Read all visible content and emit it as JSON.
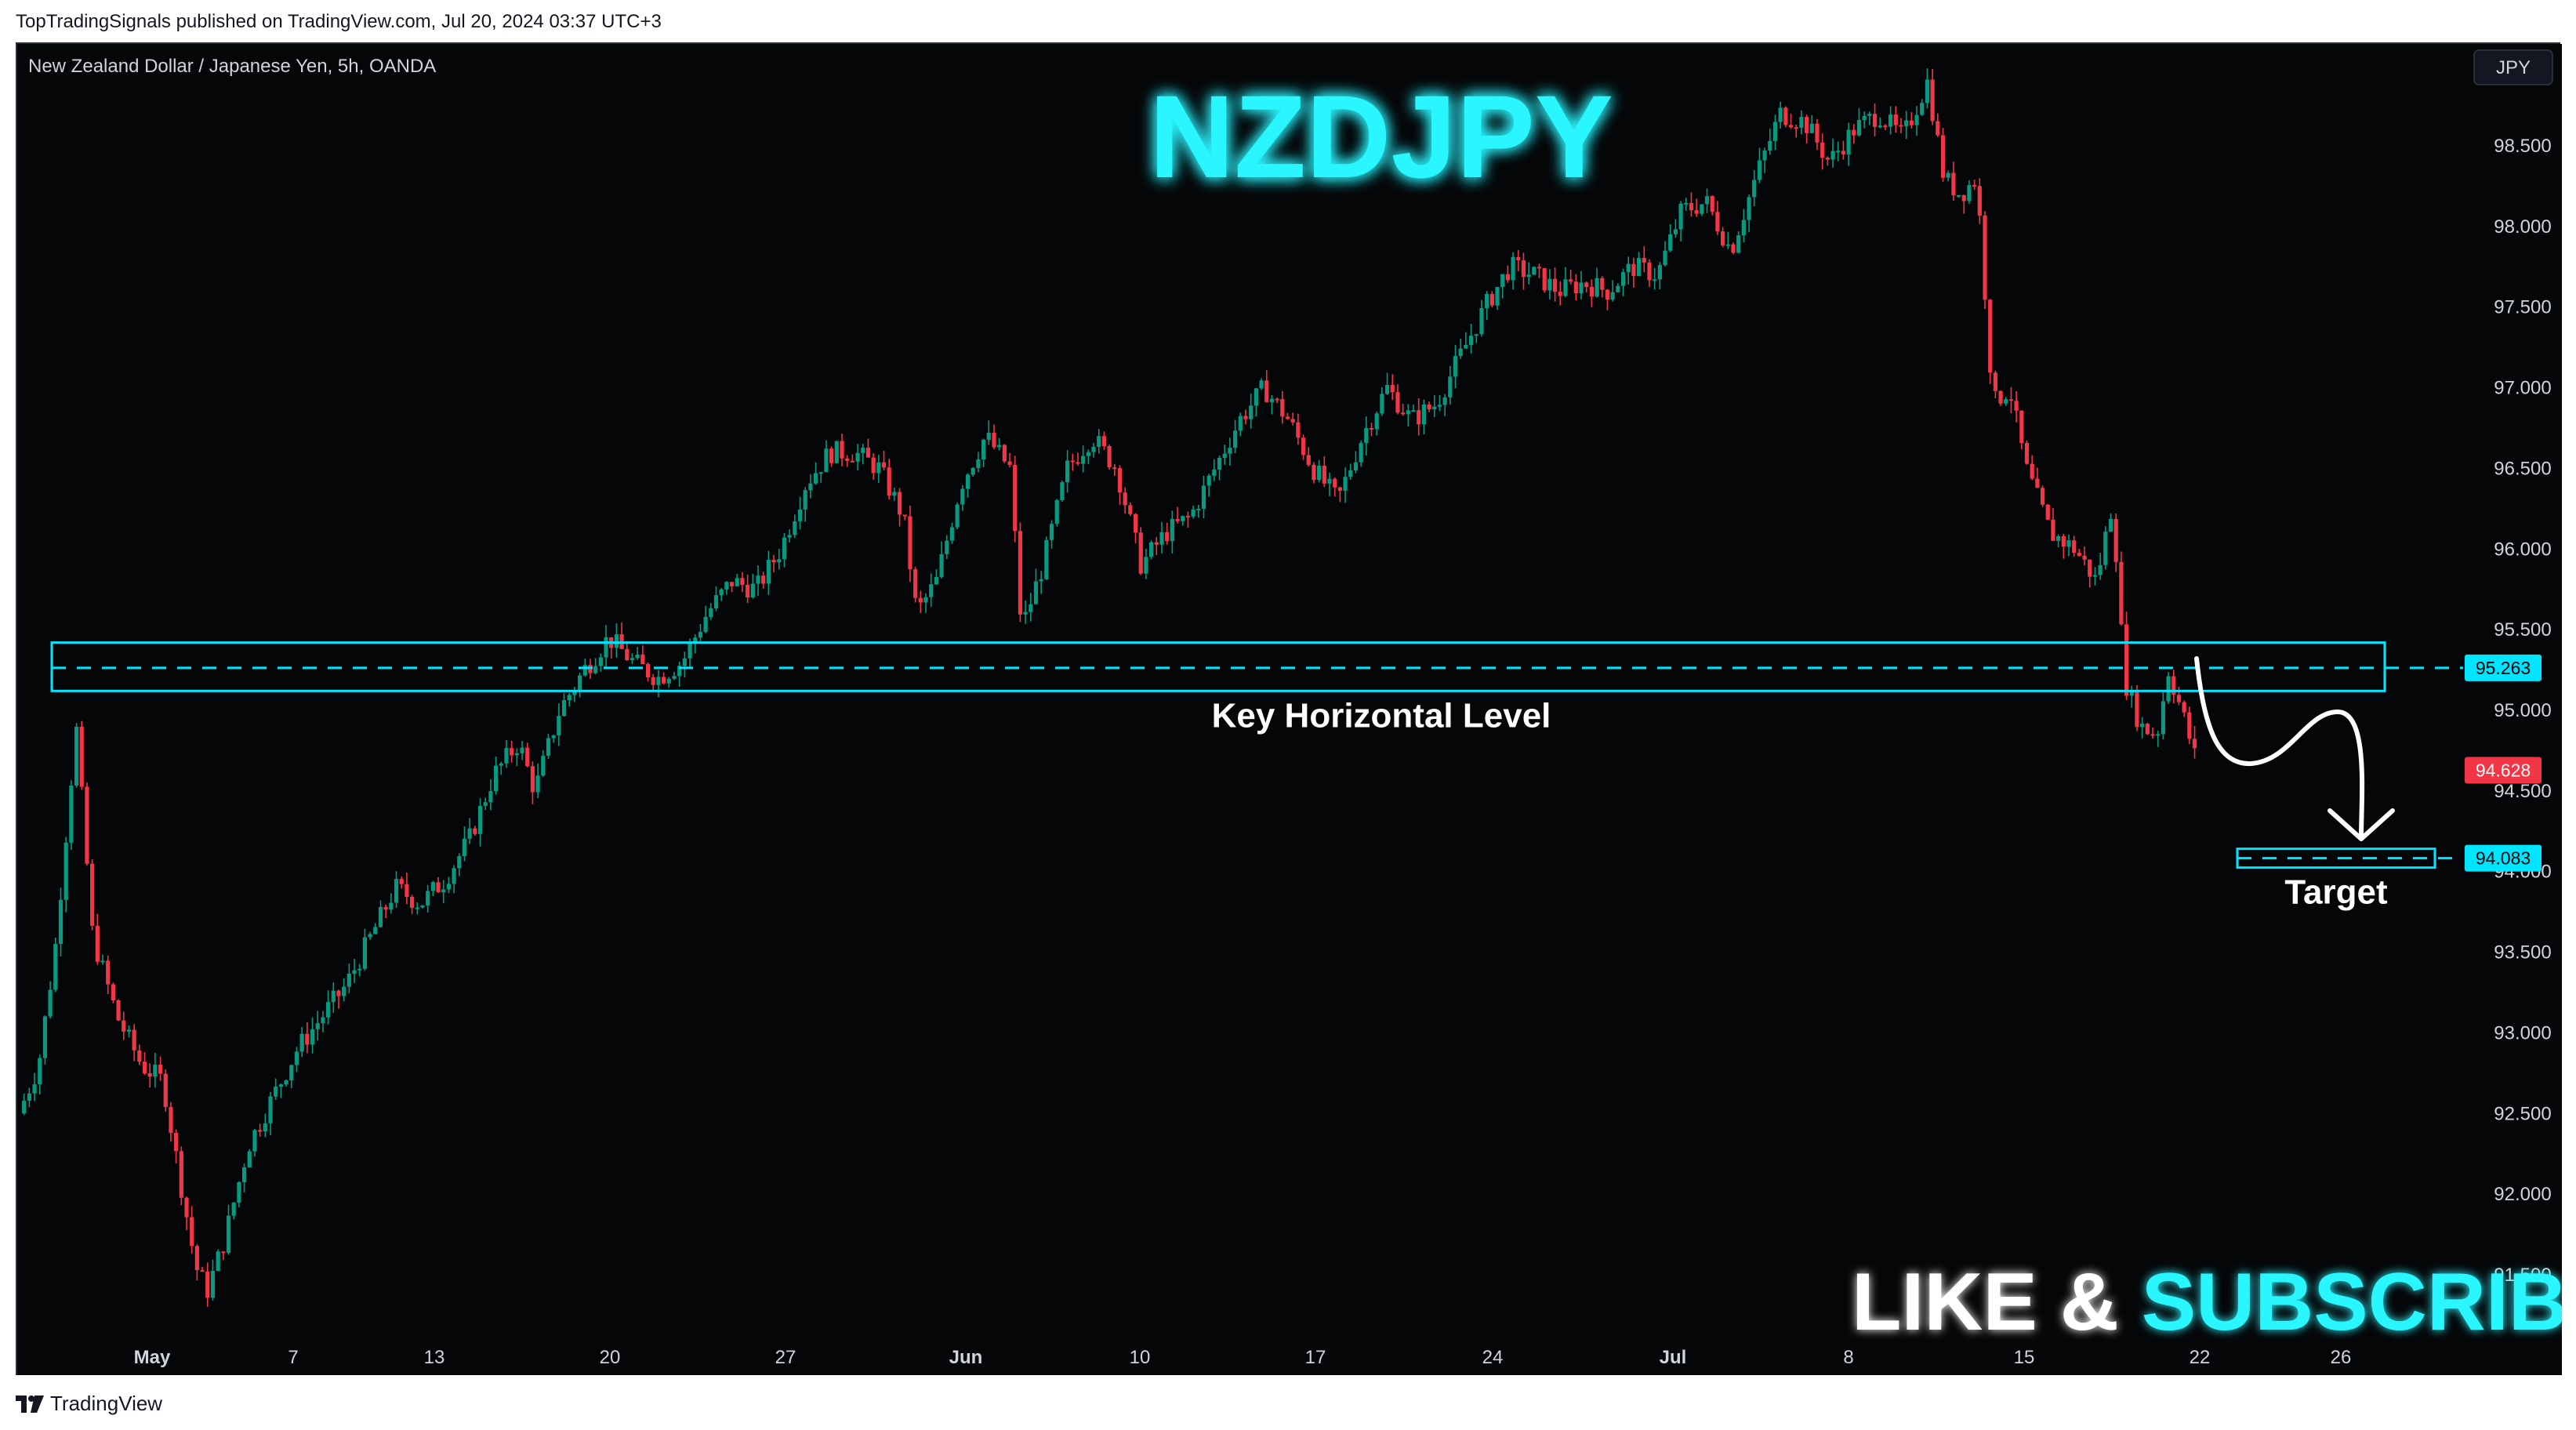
{
  "publisher_line": "TopTradingSignals published on TradingView.com, Jul 20, 2024 03:37 UTC+3",
  "footer_brand": "TradingView",
  "chart_data": {
    "type": "candlestick",
    "symbol_line": "New Zealand Dollar / Japanese Yen, 5h, OANDA",
    "title": "NZDJPY",
    "currency_button": "JPY",
    "ylim": [
      91.1,
      99.0
    ],
    "y_ticks": [
      "98.500",
      "98.000",
      "97.500",
      "97.000",
      "96.500",
      "96.000",
      "95.500",
      "95.000",
      "94.500",
      "94.000",
      "93.500",
      "93.000",
      "92.500",
      "92.000",
      "91.500"
    ],
    "x_labels": [
      "May",
      "7",
      "13",
      "20",
      "27",
      "Jun",
      "10",
      "17",
      "24",
      "Jul",
      "8",
      "15",
      "22",
      "26"
    ],
    "key_level": {
      "label": "Key Horizontal Level",
      "value": 95.263,
      "zone_low": 95.12,
      "zone_high": 95.42,
      "price_tag": "95.263"
    },
    "target": {
      "label": "Target",
      "value": 94.083,
      "price_tag": "94.083"
    },
    "last_price": {
      "value": 94.628,
      "price_tag": "94.628"
    },
    "cta": {
      "part1": "LIKE & ",
      "part2": "SUBSCRIBE"
    },
    "close_path": [
      {
        "x": 0,
        "y": 92.5
      },
      {
        "x": 12,
        "y": 92.8
      },
      {
        "x": 22,
        "y": 93.5
      },
      {
        "x": 35,
        "y": 94.9
      },
      {
        "x": 45,
        "y": 93.6
      },
      {
        "x": 60,
        "y": 93.1
      },
      {
        "x": 75,
        "y": 92.8
      },
      {
        "x": 88,
        "y": 92.7
      },
      {
        "x": 100,
        "y": 92.0
      },
      {
        "x": 108,
        "y": 91.55
      },
      {
        "x": 115,
        "y": 91.4
      },
      {
        "x": 125,
        "y": 91.7
      },
      {
        "x": 140,
        "y": 92.3
      },
      {
        "x": 155,
        "y": 92.6
      },
      {
        "x": 170,
        "y": 92.9
      },
      {
        "x": 185,
        "y": 93.1
      },
      {
        "x": 200,
        "y": 93.3
      },
      {
        "x": 215,
        "y": 93.6
      },
      {
        "x": 230,
        "y": 93.9
      },
      {
        "x": 245,
        "y": 93.8
      },
      {
        "x": 260,
        "y": 93.95
      },
      {
        "x": 275,
        "y": 94.2
      },
      {
        "x": 290,
        "y": 94.6
      },
      {
        "x": 305,
        "y": 94.8
      },
      {
        "x": 315,
        "y": 94.5
      },
      {
        "x": 330,
        "y": 95.0
      },
      {
        "x": 345,
        "y": 95.25
      },
      {
        "x": 360,
        "y": 95.45
      },
      {
        "x": 375,
        "y": 95.3
      },
      {
        "x": 390,
        "y": 95.2
      },
      {
        "x": 405,
        "y": 95.3
      },
      {
        "x": 420,
        "y": 95.6
      },
      {
        "x": 435,
        "y": 95.8
      },
      {
        "x": 450,
        "y": 95.75
      },
      {
        "x": 465,
        "y": 96.0
      },
      {
        "x": 480,
        "y": 96.4
      },
      {
        "x": 495,
        "y": 96.6
      },
      {
        "x": 510,
        "y": 96.6
      },
      {
        "x": 525,
        "y": 96.5
      },
      {
        "x": 540,
        "y": 96.2
      },
      {
        "x": 548,
        "y": 95.6
      },
      {
        "x": 560,
        "y": 95.8
      },
      {
        "x": 575,
        "y": 96.4
      },
      {
        "x": 590,
        "y": 96.7
      },
      {
        "x": 605,
        "y": 96.5
      },
      {
        "x": 612,
        "y": 95.5
      },
      {
        "x": 625,
        "y": 95.9
      },
      {
        "x": 640,
        "y": 96.5
      },
      {
        "x": 655,
        "y": 96.7
      },
      {
        "x": 670,
        "y": 96.5
      },
      {
        "x": 685,
        "y": 95.9
      },
      {
        "x": 700,
        "y": 96.1
      },
      {
        "x": 715,
        "y": 96.2
      },
      {
        "x": 730,
        "y": 96.5
      },
      {
        "x": 745,
        "y": 96.8
      },
      {
        "x": 760,
        "y": 97.0
      },
      {
        "x": 775,
        "y": 96.8
      },
      {
        "x": 790,
        "y": 96.5
      },
      {
        "x": 805,
        "y": 96.3
      },
      {
        "x": 820,
        "y": 96.7
      },
      {
        "x": 835,
        "y": 97.0
      },
      {
        "x": 850,
        "y": 96.8
      },
      {
        "x": 865,
        "y": 96.9
      },
      {
        "x": 880,
        "y": 97.2
      },
      {
        "x": 895,
        "y": 97.5
      },
      {
        "x": 910,
        "y": 97.75
      },
      {
        "x": 925,
        "y": 97.7
      },
      {
        "x": 940,
        "y": 97.6
      },
      {
        "x": 955,
        "y": 97.65
      },
      {
        "x": 970,
        "y": 97.6
      },
      {
        "x": 985,
        "y": 97.75
      },
      {
        "x": 1000,
        "y": 97.7
      },
      {
        "x": 1015,
        "y": 98.1
      },
      {
        "x": 1030,
        "y": 98.15
      },
      {
        "x": 1045,
        "y": 97.85
      },
      {
        "x": 1060,
        "y": 98.3
      },
      {
        "x": 1075,
        "y": 98.7
      },
      {
        "x": 1090,
        "y": 98.65
      },
      {
        "x": 1105,
        "y": 98.4
      },
      {
        "x": 1120,
        "y": 98.6
      },
      {
        "x": 1135,
        "y": 98.7
      },
      {
        "x": 1150,
        "y": 98.55
      },
      {
        "x": 1165,
        "y": 98.9
      },
      {
        "x": 1175,
        "y": 98.3
      },
      {
        "x": 1185,
        "y": 98.2
      },
      {
        "x": 1195,
        "y": 98.3
      },
      {
        "x": 1205,
        "y": 96.9
      },
      {
        "x": 1215,
        "y": 97.0
      },
      {
        "x": 1225,
        "y": 96.5
      },
      {
        "x": 1240,
        "y": 96.1
      },
      {
        "x": 1255,
        "y": 96.0
      },
      {
        "x": 1268,
        "y": 95.8
      },
      {
        "x": 1278,
        "y": 96.3
      },
      {
        "x": 1285,
        "y": 95.2
      },
      {
        "x": 1295,
        "y": 94.9
      },
      {
        "x": 1305,
        "y": 94.85
      },
      {
        "x": 1312,
        "y": 95.25
      },
      {
        "x": 1320,
        "y": 95.0
      },
      {
        "x": 1330,
        "y": 94.65
      }
    ]
  }
}
